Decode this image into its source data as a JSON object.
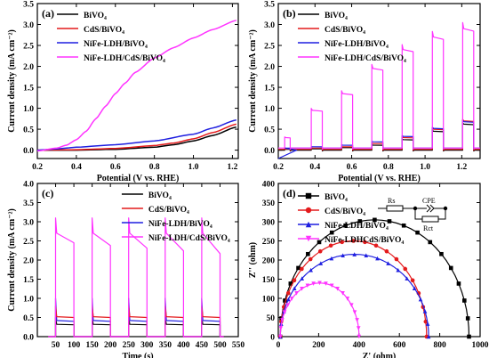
{
  "colors": {
    "black": "#000000",
    "red": "#e41a1c",
    "blue": "#1f1fe0",
    "magenta": "#ff33ff"
  },
  "chart_data": [
    {
      "panel_label": "(a)",
      "type": "line",
      "xlabel": "Potential (V vs. RHE)",
      "ylabel": "Current density (mA cm⁻²)",
      "xlim": [
        0.2,
        1.23
      ],
      "ylim": [
        -0.2,
        3.5
      ],
      "xticks": [
        "0.2",
        "0.4",
        "0.6",
        "0.8",
        "1.0",
        "1.2"
      ],
      "yticks": [
        "0.0",
        "0.5",
        "1.0",
        "1.5",
        "2.0",
        "2.5",
        "3.0",
        "3.5"
      ],
      "legend_position": "top-left",
      "series": [
        {
          "name": "BiVO₄",
          "color": "black",
          "x": [
            0.2,
            0.4,
            0.6,
            0.8,
            0.9,
            1.0,
            1.1,
            1.22
          ],
          "y": [
            0,
            0,
            0.02,
            0.07,
            0.13,
            0.22,
            0.35,
            0.55
          ]
        },
        {
          "name": "CdS/BiVO₄",
          "color": "red",
          "x": [
            0.2,
            0.4,
            0.6,
            0.8,
            0.9,
            1.0,
            1.1,
            1.22
          ],
          "y": [
            0,
            0.01,
            0.04,
            0.11,
            0.17,
            0.27,
            0.42,
            0.62
          ]
        },
        {
          "name": "NiFe-LDH/BiVO₄",
          "color": "blue",
          "x": [
            0.2,
            0.3,
            0.4,
            0.6,
            0.8,
            1.0,
            1.1,
            1.22
          ],
          "y": [
            0,
            0.03,
            0.07,
            0.13,
            0.22,
            0.38,
            0.53,
            0.72
          ]
        },
        {
          "name": "NiFe-LDH/CdS/BiVO₄",
          "color": "magenta",
          "x": [
            0.2,
            0.3,
            0.35,
            0.4,
            0.45,
            0.5,
            0.55,
            0.6,
            0.65,
            0.7,
            0.8,
            0.9,
            1.0,
            1.1,
            1.22
          ],
          "y": [
            -0.02,
            0.05,
            0.12,
            0.25,
            0.45,
            0.75,
            1.05,
            1.35,
            1.6,
            1.85,
            2.2,
            2.45,
            2.68,
            2.88,
            3.1
          ]
        }
      ]
    },
    {
      "panel_label": "(b)",
      "type": "line",
      "xlabel": "Potential (V vs. RHE)",
      "ylabel": "Current density (mA cm⁻²)",
      "xlim": [
        0.2,
        1.3
      ],
      "ylim": [
        -0.2,
        3.5
      ],
      "xticks": [
        "0.2",
        "0.4",
        "0.6",
        "0.8",
        "1.0",
        "1.2"
      ],
      "yticks": [
        "0.0",
        "0.5",
        "1.0",
        "1.5",
        "2.0",
        "2.5",
        "3.0",
        "3.5"
      ],
      "legend_position": "top-left",
      "chopped_light": {
        "on_intervals": [
          [
            0.235,
            0.265
          ],
          [
            0.38,
            0.44
          ],
          [
            0.545,
            0.605
          ],
          [
            0.71,
            0.77
          ],
          [
            0.875,
            0.935
          ],
          [
            1.04,
            1.1
          ],
          [
            1.205,
            1.265
          ]
        ],
        "off_level": {
          "black": 0.0,
          "red": 0.02,
          "blue": 0.05,
          "magenta": 0.05
        },
        "on_level": {
          "black": [
            0.02,
            0.03,
            0.06,
            0.12,
            0.25,
            0.45,
            0.62
          ],
          "red": [
            0.03,
            0.05,
            0.08,
            0.16,
            0.3,
            0.5,
            0.7
          ],
          "blue": [
            0.05,
            0.08,
            0.12,
            0.2,
            0.33,
            0.52,
            0.68
          ],
          "magenta": [
            0.3,
            0.95,
            1.35,
            1.95,
            2.4,
            2.7,
            2.9
          ]
        }
      },
      "series": [
        {
          "name": "BiVO₄",
          "color": "black"
        },
        {
          "name": "CdS/BiVO₄",
          "color": "red"
        },
        {
          "name": "NiFe-LDH/BiVO₄",
          "color": "blue"
        },
        {
          "name": "NiFe-LDH/CdS/BiVO₄",
          "color": "magenta"
        }
      ]
    },
    {
      "panel_label": "(c)",
      "type": "line",
      "xlabel": "Time (s)",
      "ylabel": "Current density (mA cm⁻²)",
      "xlim": [
        0,
        550
      ],
      "ylim": [
        0,
        4.0
      ],
      "xticks": [
        "50",
        "100",
        "150",
        "200",
        "250",
        "300",
        "350",
        "400",
        "450",
        "500",
        "550"
      ],
      "yticks": [
        "0.0",
        "0.5",
        "1.0",
        "1.5",
        "2.0",
        "2.5",
        "3.0",
        "3.5",
        "4.0"
      ],
      "legend_position": "top-right",
      "chopped_light": {
        "on_intervals": [
          [
            50,
            100
          ],
          [
            150,
            200
          ],
          [
            250,
            300
          ],
          [
            350,
            400
          ],
          [
            450,
            500
          ]
        ],
        "off_level": {
          "black": 0.0,
          "red": 0.0,
          "blue": 0.0,
          "magenta": 0.0
        },
        "on_start": {
          "black": 0.32,
          "red": 0.52,
          "blue": 0.42,
          "magenta": 2.7
        },
        "on_end": {
          "black": 0.31,
          "red": 0.5,
          "blue": 0.4,
          "magenta": 2.35
        },
        "spike": {
          "black": 0.5,
          "red": 0.8,
          "blue": 1.0,
          "magenta": 3.1
        }
      },
      "series": [
        {
          "name": "BiVO₄",
          "color": "black"
        },
        {
          "name": "CdS/BiVO₄",
          "color": "red"
        },
        {
          "name": "NiFe-LDH/BiVO₄",
          "color": "blue"
        },
        {
          "name": "NiFe-LDH/CdS/BiVO₄",
          "color": "magenta"
        }
      ]
    },
    {
      "panel_label": "(d)",
      "type": "scatter",
      "xlabel": "Z' (ohm)",
      "ylabel": "Z'' (ohm)",
      "xlim": [
        0,
        1000
      ],
      "ylim": [
        0,
        400
      ],
      "xticks": [
        "0",
        "200",
        "400",
        "600",
        "800",
        "1000"
      ],
      "yticks": [
        "0",
        "50",
        "100",
        "150",
        "200",
        "250",
        "300",
        "350",
        "400"
      ],
      "legend_position": "top-left",
      "circuit_labels": {
        "rs": "Rs",
        "cpe": "CPE",
        "rct": "Rct"
      },
      "series": [
        {
          "name": "BiVO₄",
          "color": "black",
          "marker": "square",
          "arc": {
            "x0": 10,
            "x1": 945,
            "peak": 305
          }
        },
        {
          "name": "CdS/BiVO₄",
          "color": "red",
          "marker": "circle",
          "arc": {
            "x0": 10,
            "x1": 735,
            "peak": 250
          }
        },
        {
          "name": "NiFe-LDH/BiVO₄",
          "color": "blue",
          "marker": "triangle",
          "arc": {
            "x0": 10,
            "x1": 745,
            "peak": 215
          }
        },
        {
          "name": "NiFe-LDHCdS/BiVO₄",
          "color": "magenta",
          "marker": "triangle-down",
          "arc": {
            "x0": 10,
            "x1": 400,
            "peak": 140
          }
        }
      ]
    }
  ]
}
